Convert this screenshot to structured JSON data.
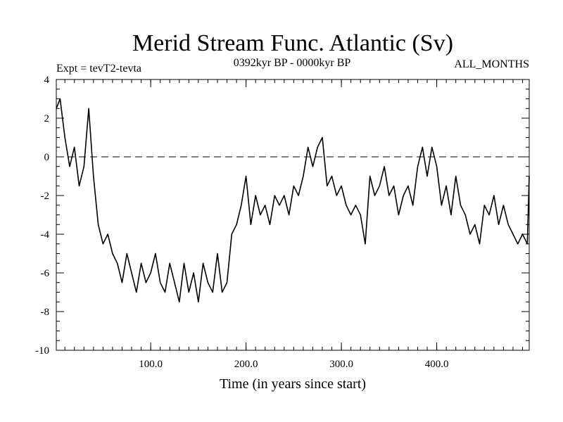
{
  "chart_data": {
    "type": "line",
    "title": "Merid Stream Func. Atlantic (Sv)",
    "subtitle_left": "Expt = tevT2-tevta",
    "subtitle_center": "0392kyr BP - 0000kyr BP",
    "subtitle_right": "ALL_MONTHS",
    "xlabel": "Time (in years since start)",
    "ylabel": "",
    "xlim": [
      1,
      497
    ],
    "ylim": [
      -10,
      4
    ],
    "x_ticks": [
      100,
      200,
      300,
      400
    ],
    "x_tick_labels": [
      "100.0",
      "200.0",
      "300.0",
      "400.0"
    ],
    "y_ticks": [
      4,
      2,
      0,
      -2,
      -4,
      -6,
      -8,
      -10
    ],
    "y_tick_labels": [
      "4",
      "2",
      "0",
      "-2",
      "-4",
      "-6",
      "-8",
      "-10"
    ],
    "reference_line": {
      "y": 0,
      "style": "dashed"
    },
    "grid": false,
    "series": [
      {
        "color": "#000000",
        "x": [
          1,
          5,
          10,
          15,
          20,
          25,
          30,
          35,
          40,
          45,
          50,
          55,
          60,
          65,
          70,
          75,
          80,
          85,
          90,
          95,
          100,
          105,
          110,
          115,
          120,
          125,
          130,
          135,
          140,
          145,
          150,
          155,
          160,
          165,
          170,
          175,
          180,
          185,
          190,
          195,
          200,
          205,
          210,
          215,
          220,
          225,
          230,
          235,
          240,
          245,
          250,
          255,
          260,
          265,
          270,
          275,
          280,
          285,
          290,
          295,
          300,
          305,
          310,
          315,
          320,
          325,
          330,
          335,
          340,
          345,
          350,
          355,
          360,
          365,
          370,
          375,
          380,
          385,
          390,
          395,
          400,
          405,
          410,
          415,
          420,
          425,
          430,
          435,
          440,
          445,
          450,
          455,
          460,
          465,
          470,
          475,
          480,
          485,
          490,
          495,
          497
        ],
        "y": [
          2.5,
          3.0,
          1.0,
          -0.5,
          0.5,
          -1.5,
          -0.5,
          2.5,
          -1.0,
          -3.5,
          -4.5,
          -4.0,
          -5.0,
          -5.5,
          -6.5,
          -5.0,
          -6.0,
          -7.0,
          -5.5,
          -6.5,
          -6.0,
          -5.0,
          -6.5,
          -7.0,
          -5.5,
          -6.5,
          -7.5,
          -5.5,
          -7.0,
          -6.0,
          -7.5,
          -5.5,
          -6.5,
          -7.0,
          -5.0,
          -7.0,
          -6.5,
          -4.0,
          -3.5,
          -2.5,
          -1.0,
          -3.5,
          -2.0,
          -3.0,
          -2.5,
          -3.5,
          -2.0,
          -2.5,
          -2.0,
          -3.0,
          -1.5,
          -2.0,
          -1.0,
          0.5,
          -0.5,
          0.5,
          1.0,
          -1.5,
          -1.0,
          -2.0,
          -1.5,
          -2.5,
          -3.0,
          -2.5,
          -3.0,
          -4.5,
          -1.0,
          -2.0,
          -1.5,
          -0.5,
          -2.0,
          -1.5,
          -3.0,
          -2.0,
          -1.5,
          -2.5,
          -0.5,
          0.5,
          -1.0,
          0.5,
          -0.5,
          -2.5,
          -1.5,
          -3.0,
          -1.0,
          -2.5,
          -3.0,
          -4.0,
          -3.5,
          -4.5,
          -2.5,
          -3.0,
          -2.0,
          -3.5,
          -2.5,
          -3.5,
          -4.0,
          -4.5,
          -4.0,
          -4.5,
          -1.0
        ]
      }
    ]
  }
}
